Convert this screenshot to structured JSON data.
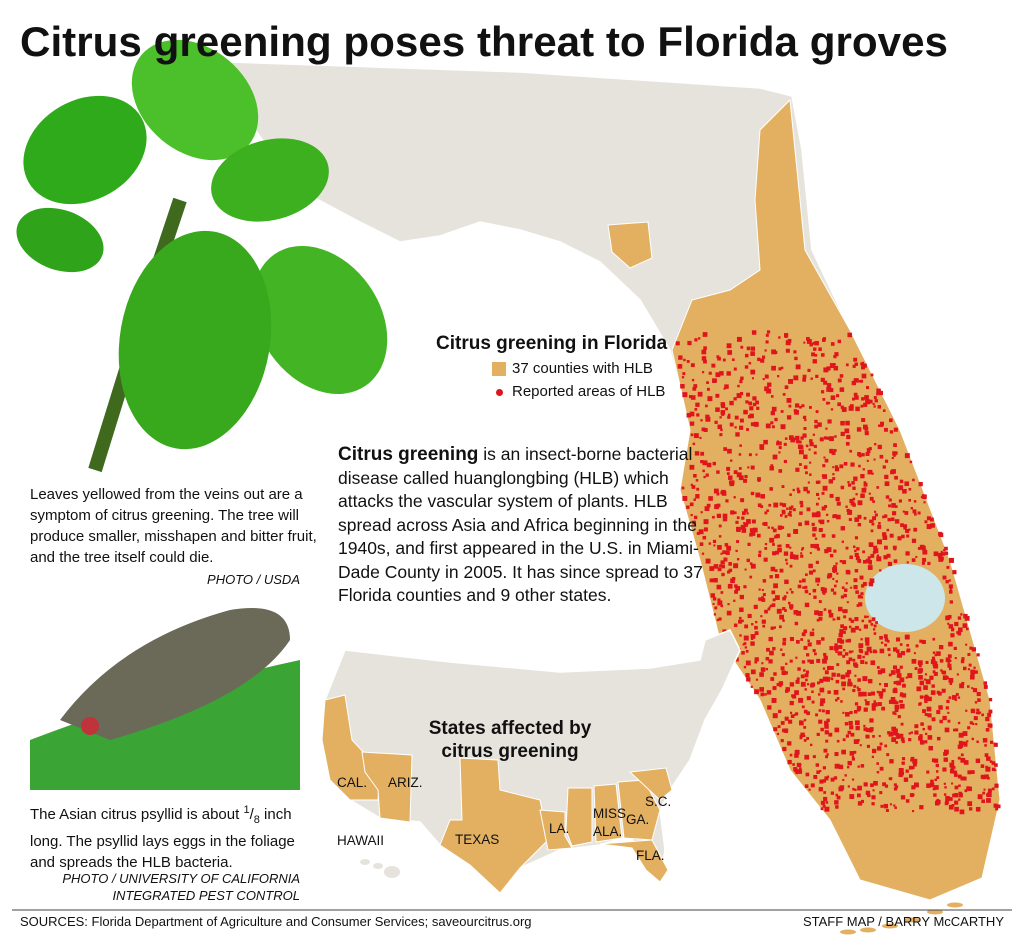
{
  "title": "Citrus greening poses threat to Florida groves",
  "leaf_caption": {
    "text": "Leaves yellowed from the veins out are a symptom of citrus greening. The tree will produce smaller, misshapen and bitter fruit, and the tree itself could die.",
    "credit": "PHOTO / USDA"
  },
  "psyllid_caption": {
    "text_before": "The Asian citrus psyllid is about",
    "fraction_numerator": "1",
    "fraction_denominator": "8",
    "text_after": "inch long. The psyllid lays eggs in the foliage and spreads the HLB bacteria.",
    "credit_lines": [
      "PHOTO / UNIVERSITY OF CALIFORNIA",
      "INTEGRATED PEST CONTROL"
    ]
  },
  "florida_legend": {
    "title": "Citrus greening in Florida",
    "items": [
      {
        "label": "37 counties with HLB",
        "color": "#e3b062"
      },
      {
        "label": "Reported areas of HLB",
        "color": "#e0141c"
      }
    ]
  },
  "description": {
    "lead": "Citrus greening",
    "text": " is an insect-borne bacterial disease called huanglongbing (HLB) which attacks the vascular system of plants. HLB spread across Asia and Africa beginning in the 1940s, and first appeared in the U.S. in Miami-Dade County in 2005. It has since spread to 37 Florida counties and 9 other states."
  },
  "us_map": {
    "title_lines": [
      "States affected by",
      "citrus greening"
    ],
    "state_labels": [
      "CAL.",
      "ARIZ.",
      "TEXAS",
      "LA.",
      "MISS.",
      "ALA.",
      "GA.",
      "S.C.",
      "FLA.",
      "HAWAII"
    ]
  },
  "footer": {
    "sources": "SOURCES: Florida Department of Agriculture and Consumer Services; saveourcitrus.org",
    "credit": "STAFF MAP / BARRY McCARTHY"
  }
}
